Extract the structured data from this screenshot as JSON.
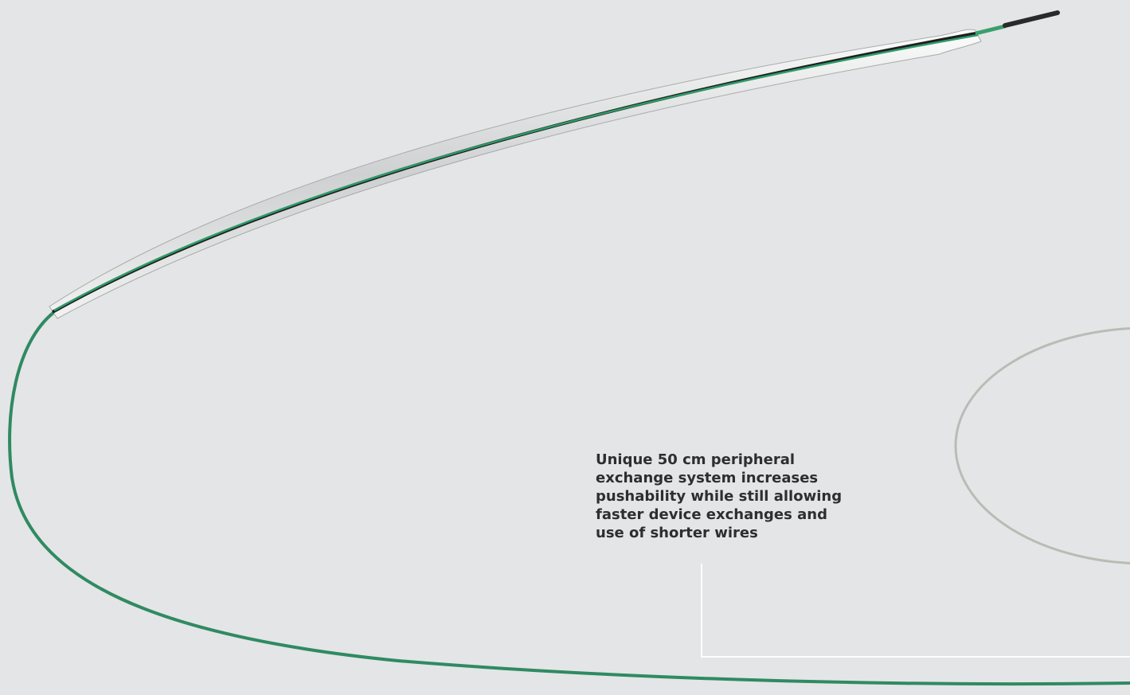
{
  "caption": {
    "lines": [
      "Unique 50 cm peripheral",
      "exchange system increases",
      "pushability while still allowing",
      "faster device exchanges and",
      "use of shorter wires"
    ]
  }
}
